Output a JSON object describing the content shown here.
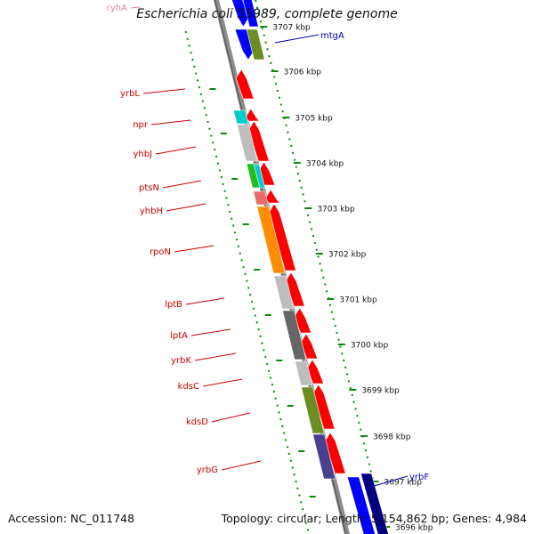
{
  "title": "Escherichia coli 55989, complete genome",
  "accession": "Accession: NC_011748",
  "summary": "Topology: circular; Length: 5,154,862 bp; Genes: 4,984",
  "colors": {
    "backbone": "#8c8c8c",
    "tick": "#0a8a0a",
    "kbp_text": "#111111",
    "gene_label": "#cc0000",
    "gene_label_blue": "#0000bb",
    "gene_label_pink": "#e87fb0"
  },
  "kbp_ticks": [
    {
      "label": "3707 kbp"
    },
    {
      "label": "3706 kbp"
    },
    {
      "label": "3705 kbp"
    },
    {
      "label": "3704 kbp"
    },
    {
      "label": "3703 kbp"
    },
    {
      "label": "3702 kbp"
    },
    {
      "label": "3701 kbp"
    },
    {
      "label": "3700 kbp"
    },
    {
      "label": "3699 kbp"
    },
    {
      "label": "3698 kbp"
    },
    {
      "label": "3697 kbp"
    },
    {
      "label": "3696 kbp"
    }
  ],
  "genes_left": [
    {
      "name": "yrbL",
      "color": "#ff0000"
    },
    {
      "name": "npr",
      "color": "#ff0000"
    },
    {
      "name": "yhbJ",
      "color": "#ff0000"
    },
    {
      "name": "ptsN",
      "color": "#ff0000"
    },
    {
      "name": "yhbH",
      "color": "#ff0000"
    },
    {
      "name": "rpoN",
      "color": "#ff0000"
    },
    {
      "name": "lptB",
      "color": "#ff0000"
    },
    {
      "name": "lptA",
      "color": "#ff0000"
    },
    {
      "name": "yrbK",
      "color": "#ff0000"
    },
    {
      "name": "kdsC",
      "color": "#ff0000"
    },
    {
      "name": "kdsD",
      "color": "#ff0000"
    },
    {
      "name": "yrbG",
      "color": "#ff0000"
    }
  ],
  "genes_right": [
    {
      "name": "mtgA",
      "color": "#0000ff"
    },
    {
      "name": "yrbF",
      "color": "#0000aa"
    }
  ],
  "genes_top": [
    {
      "name": "ryhA",
      "color": "#e87fb0"
    }
  ]
}
